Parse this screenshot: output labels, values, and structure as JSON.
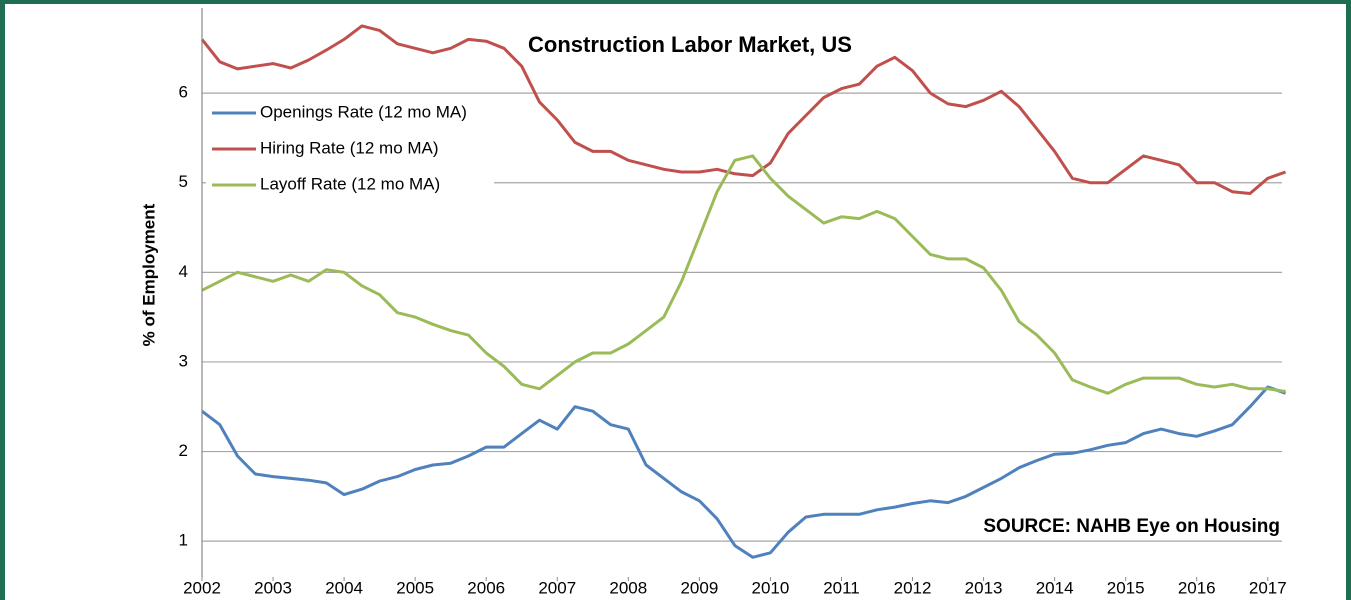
{
  "chart_data": {
    "type": "line",
    "title": "Construction Labor Market, US",
    "y_label": "% of Employment",
    "annotation": "SOURCE: NAHB Eye on Housing",
    "x": [
      2002,
      2002.25,
      2002.5,
      2002.75,
      2003,
      2003.25,
      2003.5,
      2003.75,
      2004,
      2004.25,
      2004.5,
      2004.75,
      2005,
      2005.25,
      2005.5,
      2005.75,
      2006,
      2006.25,
      2006.5,
      2006.75,
      2007,
      2007.25,
      2007.5,
      2007.75,
      2008,
      2008.25,
      2008.5,
      2008.75,
      2009,
      2009.25,
      2009.5,
      2009.75,
      2010,
      2010.25,
      2010.5,
      2010.75,
      2011,
      2011.25,
      2011.5,
      2011.75,
      2012,
      2012.25,
      2012.5,
      2012.75,
      2013,
      2013.25,
      2013.5,
      2013.75,
      2014,
      2014.25,
      2014.5,
      2014.75,
      2015,
      2015.25,
      2015.5,
      2015.75,
      2016,
      2016.25,
      2016.5,
      2016.75,
      2017,
      2017.25
    ],
    "series": [
      {
        "name": "Openings Rate (12 mo MA)",
        "color": "#4f81bd",
        "values": [
          2.45,
          2.3,
          1.95,
          1.75,
          1.72,
          1.7,
          1.68,
          1.65,
          1.52,
          1.58,
          1.67,
          1.72,
          1.8,
          1.85,
          1.87,
          1.95,
          2.05,
          2.05,
          2.2,
          2.35,
          2.25,
          2.5,
          2.45,
          2.3,
          2.25,
          1.85,
          1.7,
          1.55,
          1.45,
          1.25,
          0.95,
          0.82,
          0.87,
          1.1,
          1.27,
          1.3,
          1.3,
          1.3,
          1.35,
          1.38,
          1.42,
          1.45,
          1.43,
          1.5,
          1.6,
          1.7,
          1.82,
          1.9,
          1.97,
          1.98,
          2.02,
          2.07,
          2.1,
          2.2,
          2.25,
          2.2,
          2.17,
          2.23,
          2.3,
          2.5,
          2.72,
          2.65
        ]
      },
      {
        "name": "Hiring Rate (12 mo MA)",
        "color": "#c0504d",
        "values": [
          6.6,
          6.35,
          6.27,
          6.3,
          6.33,
          6.28,
          6.37,
          6.48,
          6.6,
          6.75,
          6.7,
          6.55,
          6.5,
          6.45,
          6.5,
          6.6,
          6.58,
          6.5,
          6.3,
          5.9,
          5.7,
          5.45,
          5.35,
          5.35,
          5.25,
          5.2,
          5.15,
          5.12,
          5.12,
          5.15,
          5.1,
          5.08,
          5.22,
          5.55,
          5.75,
          5.95,
          6.05,
          6.1,
          6.3,
          6.4,
          6.25,
          6.0,
          5.88,
          5.85,
          5.92,
          6.02,
          5.85,
          5.6,
          5.35,
          5.05,
          5.0,
          5.0,
          5.15,
          5.3,
          5.25,
          5.2,
          5.0,
          5.0,
          4.9,
          4.88,
          5.05,
          5.12
        ]
      },
      {
        "name": "Layoff Rate (12 mo MA)",
        "color": "#9bbb59",
        "values": [
          3.8,
          3.9,
          4.0,
          3.95,
          3.9,
          3.97,
          3.9,
          4.03,
          4.0,
          3.85,
          3.75,
          3.55,
          3.5,
          3.42,
          3.35,
          3.3,
          3.1,
          2.95,
          2.75,
          2.7,
          2.85,
          3.0,
          3.1,
          3.1,
          3.2,
          3.35,
          3.5,
          3.9,
          4.4,
          4.9,
          5.25,
          5.3,
          5.05,
          4.85,
          4.7,
          4.55,
          4.62,
          4.6,
          4.68,
          4.6,
          4.4,
          4.2,
          4.15,
          4.15,
          4.05,
          3.8,
          3.45,
          3.3,
          3.1,
          2.8,
          2.72,
          2.65,
          2.75,
          2.82,
          2.82,
          2.82,
          2.75,
          2.72,
          2.75,
          2.7,
          2.7,
          2.67
        ]
      }
    ],
    "xlim": [
      2002,
      2017.2
    ],
    "xticks": [
      2002,
      2003,
      2004,
      2005,
      2006,
      2007,
      2008,
      2009,
      2010,
      2011,
      2012,
      2013,
      2014,
      2015,
      2016,
      2017
    ],
    "ylim": [
      0.6,
      6.95
    ],
    "yticks": [
      1,
      2,
      3,
      4,
      5,
      6
    ],
    "grid": true,
    "legend": "upper left"
  }
}
